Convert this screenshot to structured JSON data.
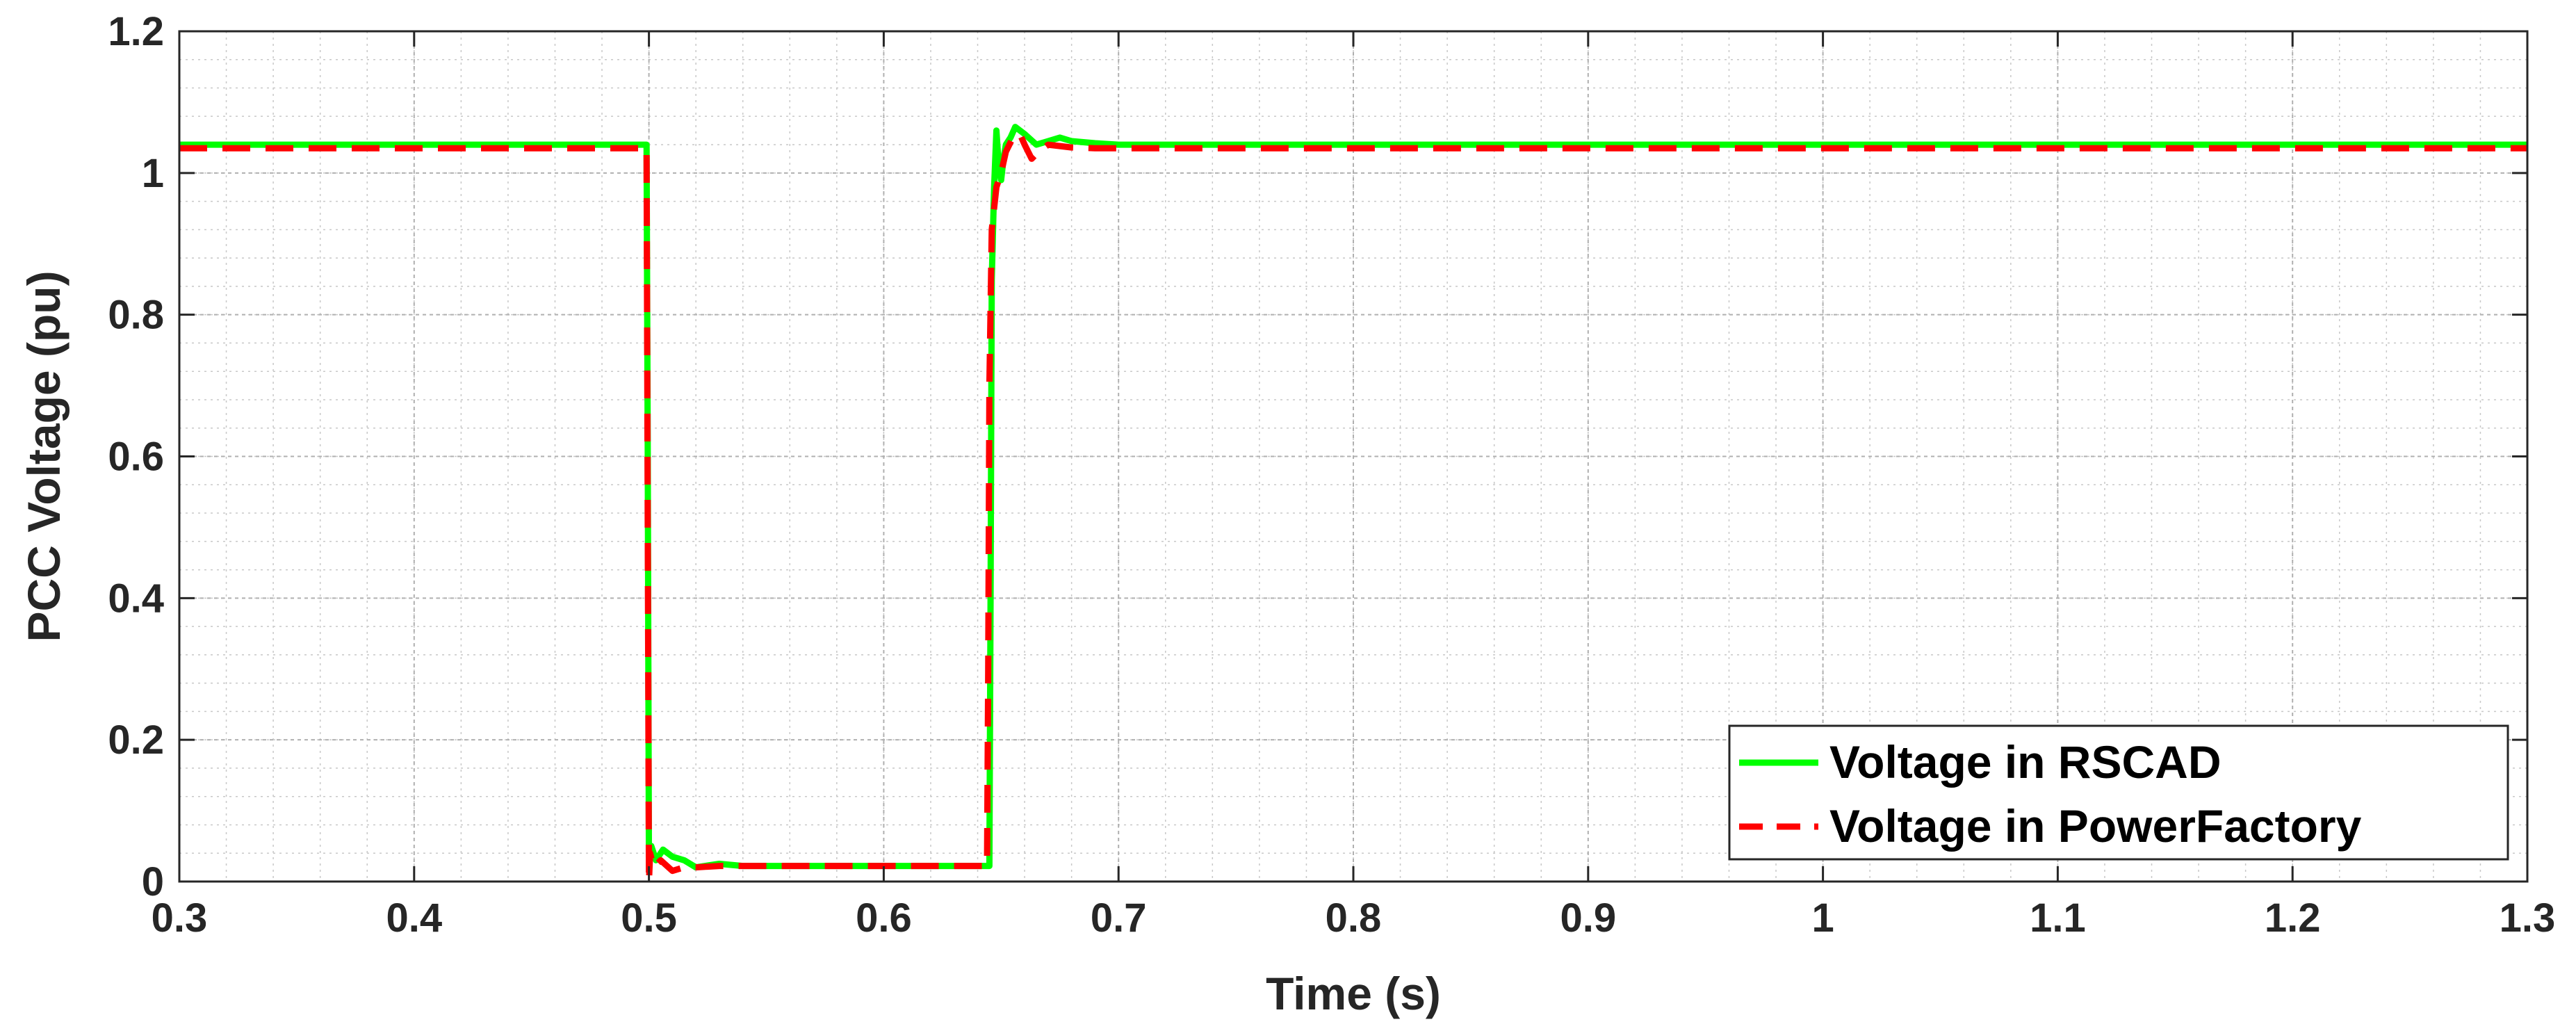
{
  "chart_data": {
    "type": "line",
    "title": "",
    "xlabel": "Time (s)",
    "ylabel": "PCC Voltage (pu)",
    "xlim": [
      0.3,
      1.3
    ],
    "ylim": [
      0,
      1.2
    ],
    "xticks": [
      0.3,
      0.4,
      0.5,
      0.6,
      0.7,
      0.8,
      0.9,
      1.0,
      1.1,
      1.2,
      1.3
    ],
    "xtick_labels": [
      "0.3",
      "0.4",
      "0.5",
      "0.6",
      "0.7",
      "0.8",
      "0.9",
      "1",
      "1.1",
      "1.2",
      "1.3"
    ],
    "yticks": [
      0,
      0.2,
      0.4,
      0.6,
      0.8,
      1.0,
      1.2
    ],
    "ytick_labels": [
      "0",
      "0.2",
      "0.4",
      "0.6",
      "0.8",
      "1",
      "1.2"
    ],
    "grid": true,
    "minor_grid": true,
    "legend_position": "bottom-right",
    "series": [
      {
        "name": "Voltage in RSCAD",
        "color": "#00ff00",
        "style": "solid",
        "x": [
          0.3,
          0.499,
          0.4995,
          0.5,
          0.501,
          0.503,
          0.506,
          0.51,
          0.515,
          0.52,
          0.53,
          0.54,
          0.6,
          0.645,
          0.6455,
          0.646,
          0.647,
          0.648,
          0.649,
          0.65,
          0.651,
          0.652,
          0.654,
          0.656,
          0.658,
          0.66,
          0.665,
          0.67,
          0.675,
          0.68,
          0.69,
          0.7,
          0.8,
          0.9,
          1.0,
          1.1,
          1.2,
          1.3
        ],
        "y": [
          1.04,
          1.04,
          0.6,
          0.02,
          0.05,
          0.03,
          0.045,
          0.035,
          0.03,
          0.02,
          0.025,
          0.022,
          0.022,
          0.022,
          0.4,
          0.85,
          0.98,
          1.06,
          1.01,
          0.99,
          1.02,
          1.04,
          1.05,
          1.065,
          1.06,
          1.055,
          1.04,
          1.045,
          1.05,
          1.045,
          1.042,
          1.04,
          1.04,
          1.04,
          1.04,
          1.04,
          1.04,
          1.04
        ]
      },
      {
        "name": "Voltage in PowerFactory",
        "color": "#ff0000",
        "style": "dashed",
        "x": [
          0.3,
          0.499,
          0.4995,
          0.5,
          0.5005,
          0.502,
          0.505,
          0.51,
          0.515,
          0.52,
          0.53,
          0.54,
          0.6,
          0.644,
          0.6445,
          0.645,
          0.646,
          0.648,
          0.65,
          0.652,
          0.655,
          0.658,
          0.66,
          0.663,
          0.666,
          0.67,
          0.675,
          0.68,
          0.69,
          0.7,
          0.8,
          0.9,
          1.0,
          1.1,
          1.2,
          1.3
        ],
        "y": [
          1.035,
          1.035,
          0.5,
          0.0,
          0.04,
          0.02,
          0.03,
          0.015,
          0.02,
          0.02,
          0.022,
          0.022,
          0.022,
          0.022,
          0.3,
          0.7,
          0.92,
          0.98,
          1.0,
          1.03,
          1.05,
          1.055,
          1.04,
          1.02,
          1.03,
          1.04,
          1.038,
          1.036,
          1.035,
          1.035,
          1.035,
          1.035,
          1.035,
          1.035,
          1.035,
          1.035
        ]
      }
    ]
  }
}
